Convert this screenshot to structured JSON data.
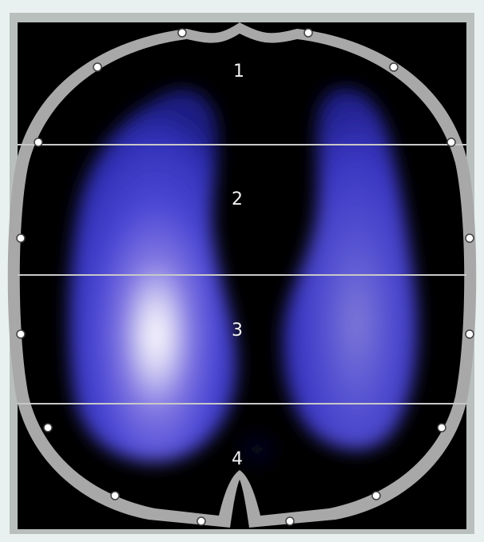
{
  "image": {
    "description_domain": "eit-lung-ventilation",
    "background_color": "#000000",
    "boundary_color": "#a8a8a8",
    "lung_color": "#3a3ad8",
    "hotspot_color": "#ffffff",
    "divider_color": "#c8c8c8",
    "electrode_count": 16
  },
  "regions": [
    {
      "label": "1"
    },
    {
      "label": "2"
    },
    {
      "label": "3"
    },
    {
      "label": "4"
    }
  ]
}
